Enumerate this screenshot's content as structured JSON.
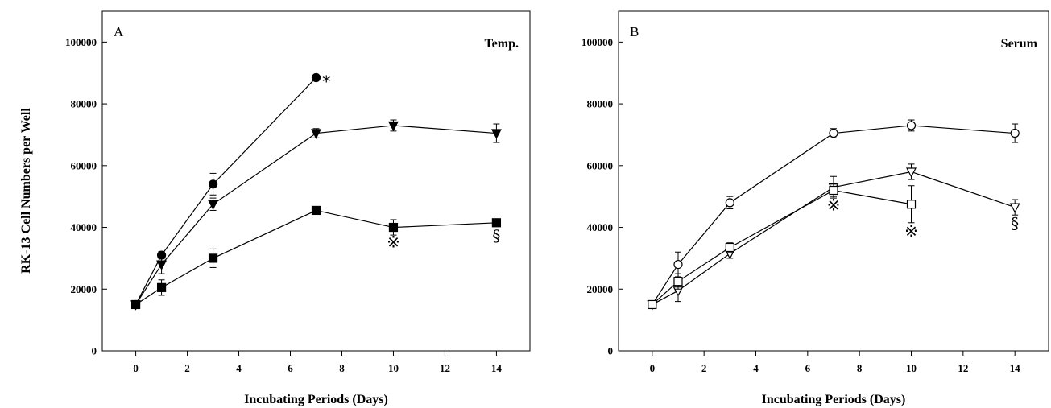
{
  "figure": {
    "ylabel": "RK-13 Cell Numbers per Well"
  },
  "chart_data": [
    {
      "type": "line",
      "panel_tag": "A",
      "condition_label": "Temp.",
      "xlabel": "Incubating Periods (Days)",
      "xlim": [
        -1.3,
        15.3
      ],
      "ylim": [
        0,
        110000
      ],
      "xticks": [
        0,
        2,
        4,
        6,
        8,
        10,
        12,
        14
      ],
      "yticks": [
        0,
        20000,
        40000,
        60000,
        80000,
        100000
      ],
      "grid": false,
      "series": [
        {
          "marker": "circle-filled",
          "x": [
            0,
            1,
            3,
            7
          ],
          "y": [
            15000,
            31000,
            54000,
            88500
          ],
          "err": [
            0,
            1200,
            3500,
            0
          ]
        },
        {
          "marker": "triangle-down-filled",
          "x": [
            0,
            1,
            3,
            7,
            10,
            14
          ],
          "y": [
            15000,
            28000,
            47500,
            70500,
            73000,
            70500
          ],
          "err": [
            0,
            3000,
            2000,
            1500,
            1800,
            3000
          ]
        },
        {
          "marker": "square-filled",
          "x": [
            0,
            1,
            3,
            7,
            10,
            14
          ],
          "y": [
            15000,
            20500,
            30000,
            45500,
            40000,
            41500
          ],
          "err": [
            0,
            2500,
            3000,
            0,
            2500,
            0
          ]
        }
      ],
      "annotations": [
        {
          "text": "*",
          "x": 7.4,
          "y": 85500
        },
        {
          "text": "※",
          "x": 10,
          "y": 33500
        },
        {
          "text": "§",
          "x": 14,
          "y": 35500
        }
      ]
    },
    {
      "type": "line",
      "panel_tag": "B",
      "condition_label": "Serum",
      "xlabel": "Incubating Periods (Days)",
      "xlim": [
        -1.3,
        15.3
      ],
      "ylim": [
        0,
        110000
      ],
      "xticks": [
        0,
        2,
        4,
        6,
        8,
        10,
        12,
        14
      ],
      "yticks": [
        0,
        20000,
        40000,
        60000,
        80000,
        100000
      ],
      "grid": false,
      "series": [
        {
          "marker": "circle-open",
          "x": [
            0,
            1,
            3,
            7,
            10,
            14
          ],
          "y": [
            15000,
            28000,
            48000,
            70500,
            73000,
            70500
          ],
          "err": [
            0,
            4000,
            2000,
            1500,
            1800,
            3000
          ]
        },
        {
          "marker": "triangle-down-open",
          "x": [
            0,
            1,
            3,
            7,
            10,
            14
          ],
          "y": [
            15000,
            19500,
            31500,
            53000,
            58000,
            46500
          ],
          "err": [
            0,
            3500,
            1500,
            3500,
            2500,
            2500
          ]
        },
        {
          "marker": "square-open",
          "x": [
            0,
            1,
            3,
            7,
            10
          ],
          "y": [
            15000,
            22500,
            33500,
            52000,
            47500
          ],
          "err": [
            0,
            2500,
            1500,
            2000,
            6000
          ]
        }
      ],
      "annotations": [
        {
          "text": "※",
          "x": 7,
          "y": 45500
        },
        {
          "text": "※",
          "x": 10,
          "y": 37000
        },
        {
          "text": "§",
          "x": 14,
          "y": 39500
        }
      ]
    }
  ]
}
